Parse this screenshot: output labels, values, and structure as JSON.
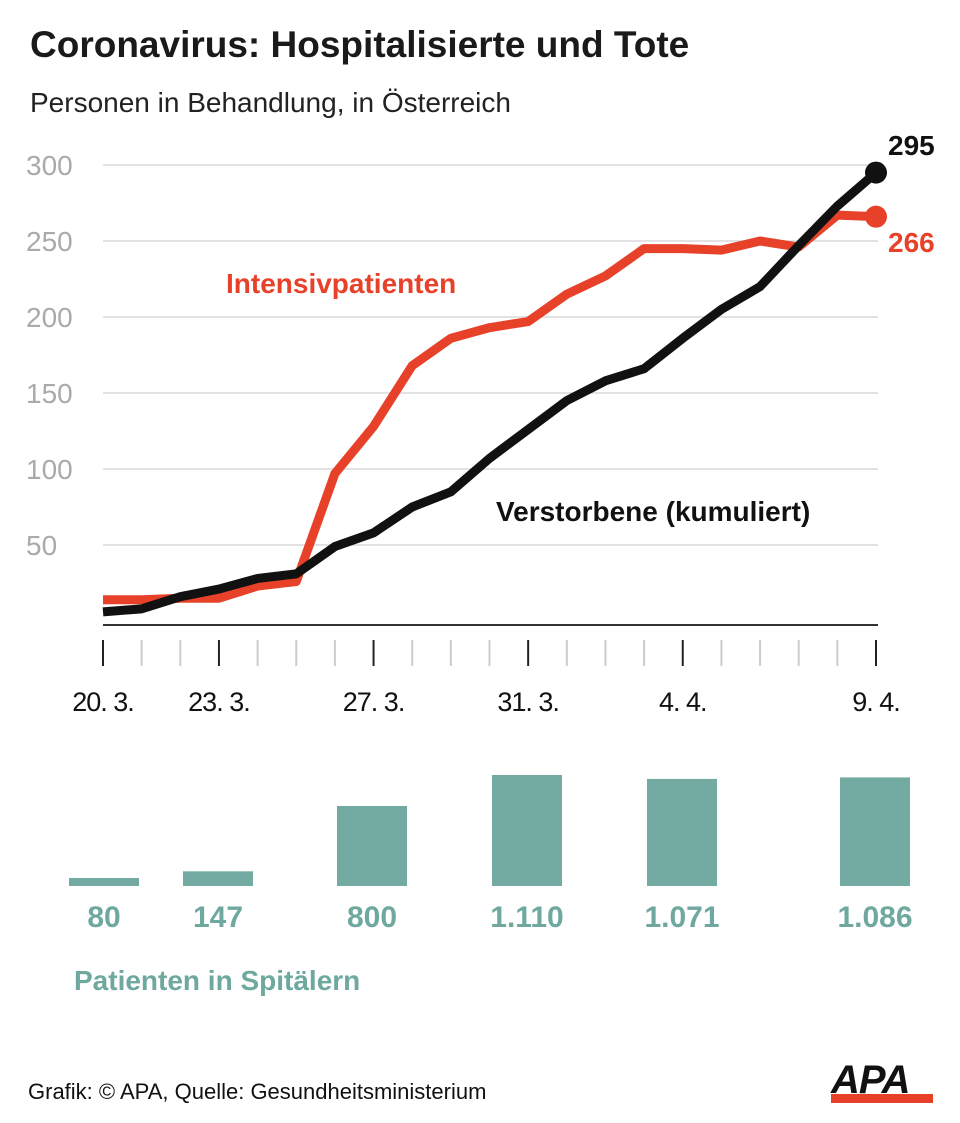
{
  "title": "Coronavirus: Hospitalisierte und Tote",
  "subtitle": "Personen in Behandlung, in Österreich",
  "footer": "Grafik: © APA, Quelle: Gesundheitsministerium",
  "logo": "APA",
  "colors": {
    "red": "#e8412a",
    "black": "#111111",
    "teal": "#73aaa1",
    "grid": "#d9d9d9"
  },
  "chart_data": [
    {
      "type": "line",
      "ylim": [
        0,
        300
      ],
      "yticks": [
        50,
        100,
        150,
        200,
        250,
        300
      ],
      "grid": true,
      "x": [
        "20.3.",
        "21.3.",
        "22.3.",
        "23.3.",
        "24.3.",
        "25.3.",
        "26.3.",
        "27.3.",
        "28.3.",
        "29.3.",
        "30.3.",
        "31.3.",
        "1.4.",
        "2.4.",
        "3.4.",
        "4.4.",
        "5.4.",
        "6.4.",
        "7.4.",
        "8.4.",
        "9.4."
      ],
      "xtick_labels": [
        {
          "index": 0,
          "label": "20. 3."
        },
        {
          "index": 3,
          "label": "23. 3."
        },
        {
          "index": 7,
          "label": "27. 3."
        },
        {
          "index": 11,
          "label": "31. 3."
        },
        {
          "index": 15,
          "label": "4. 4."
        },
        {
          "index": 20,
          "label": "9. 4."
        }
      ],
      "series": [
        {
          "name": "Intensivpatienten",
          "color": "#e8412a",
          "end_label": "266",
          "values": [
            14,
            14,
            15,
            15,
            23,
            26,
            97,
            128,
            168,
            186,
            193,
            197,
            215,
            227,
            245,
            245,
            244,
            250,
            246,
            267,
            266
          ]
        },
        {
          "name": "Verstorbene (kumuliert)",
          "color": "#111111",
          "end_label": "295",
          "values": [
            6,
            8,
            16,
            21,
            28,
            31,
            49,
            58,
            75,
            85,
            107,
            126,
            145,
            158,
            166,
            186,
            205,
            220,
            247,
            273,
            295
          ]
        }
      ]
    },
    {
      "type": "bar",
      "title": "Patienten in Spitälern",
      "categories": [
        "20.3.",
        "23.3.",
        "27.3.",
        "31.3.",
        "4.4.",
        "9.4."
      ],
      "values": [
        80,
        147,
        800,
        1110,
        1071,
        1086
      ],
      "labels": [
        "80",
        "147",
        "800",
        "1.110",
        "1.071",
        "1.086"
      ],
      "color": "#73aaa1"
    }
  ]
}
